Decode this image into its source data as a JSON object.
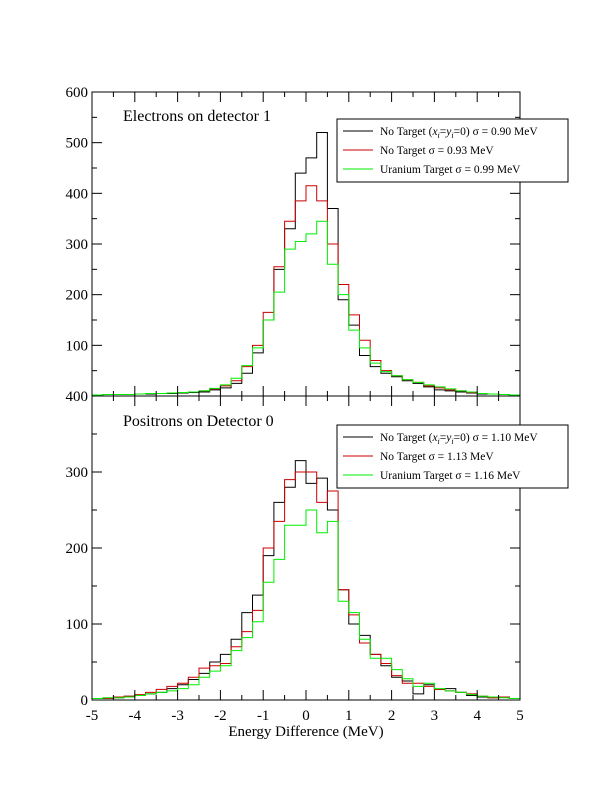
{
  "chart_data": [
    {
      "type": "line",
      "title": "Electrons on detector 1",
      "xlabel": "Energy Difference (MeV)",
      "ylabel": "",
      "xlim": [
        -5,
        5
      ],
      "ylim": [
        0,
        600
      ],
      "x_ticks": [
        "-5",
        "-4",
        "-3",
        "-2",
        "-1",
        "0",
        "1",
        "2",
        "3",
        "4",
        "5"
      ],
      "y_ticks": [
        "600",
        "500",
        "400",
        "300",
        "200",
        "100"
      ],
      "bin_edges": [
        -5.0,
        -4.75,
        -4.5,
        -4.25,
        -4.0,
        -3.75,
        -3.5,
        -3.25,
        -3.0,
        -2.75,
        -2.5,
        -2.25,
        -2.0,
        -1.75,
        -1.5,
        -1.25,
        -1.0,
        -0.75,
        -0.5,
        -0.25,
        0.0,
        0.25,
        0.5,
        0.75,
        1.0,
        1.25,
        1.5,
        1.75,
        2.0,
        2.25,
        2.5,
        2.75,
        3.0,
        3.25,
        3.5,
        3.75,
        4.0,
        4.25,
        4.5,
        4.75,
        5.0
      ],
      "legend_position": "top-right",
      "series": [
        {
          "name": "No Target (x_i=y_i=0) σ = 0.90 MeV",
          "color": "#000000",
          "values": [
            2,
            3,
            3,
            3,
            4,
            4,
            5,
            5,
            6,
            7,
            8,
            12,
            16,
            25,
            45,
            85,
            150,
            250,
            330,
            440,
            470,
            520,
            370,
            190,
            140,
            80,
            58,
            45,
            38,
            30,
            25,
            18,
            12,
            10,
            8,
            6,
            4,
            4,
            3,
            2
          ]
        },
        {
          "name": "No Target σ = 0.93 MeV",
          "color": "#cc0000",
          "values": [
            2,
            3,
            3,
            3,
            4,
            5,
            5,
            6,
            7,
            8,
            10,
            14,
            20,
            30,
            58,
            100,
            165,
            255,
            345,
            385,
            415,
            385,
            300,
            220,
            160,
            110,
            70,
            50,
            40,
            32,
            27,
            20,
            16,
            12,
            10,
            7,
            5,
            4,
            3,
            2
          ]
        },
        {
          "name": "Uranium Target σ = 0.99 MeV",
          "color": "#00ee00",
          "values": [
            2,
            3,
            3,
            3,
            4,
            5,
            5,
            6,
            7,
            8,
            10,
            15,
            22,
            35,
            60,
            95,
            150,
            205,
            290,
            305,
            320,
            345,
            260,
            200,
            130,
            95,
            65,
            48,
            40,
            32,
            27,
            22,
            18,
            14,
            10,
            8,
            5,
            4,
            3,
            2
          ]
        }
      ]
    },
    {
      "type": "line",
      "title": "Positrons on Detector 0",
      "xlabel": "Energy Difference (MeV)",
      "ylabel": "",
      "xlim": [
        -5,
        5
      ],
      "ylim": [
        0,
        400
      ],
      "x_ticks": [
        "-5",
        "-4",
        "-3",
        "-2",
        "-1",
        "0",
        "1",
        "2",
        "3",
        "4",
        "5"
      ],
      "y_ticks": [
        "400",
        "300",
        "200",
        "100",
        "0"
      ],
      "bin_edges": [
        -5.0,
        -4.75,
        -4.5,
        -4.25,
        -4.0,
        -3.75,
        -3.5,
        -3.25,
        -3.0,
        -2.75,
        -2.5,
        -2.25,
        -2.0,
        -1.75,
        -1.5,
        -1.25,
        -1.0,
        -0.75,
        -0.5,
        -0.25,
        0.0,
        0.25,
        0.5,
        0.75,
        1.0,
        1.25,
        1.5,
        1.75,
        2.0,
        2.25,
        2.5,
        2.75,
        3.0,
        3.25,
        3.5,
        3.75,
        4.0,
        4.25,
        4.5,
        4.75,
        5.0
      ],
      "legend_position": "top-right",
      "series": [
        {
          "name": "No Target (x_i=y_i=0) σ = 1.10 MeV",
          "color": "#000000",
          "values": [
            2,
            2,
            3,
            5,
            6,
            8,
            10,
            15,
            20,
            27,
            35,
            50,
            60,
            80,
            115,
            138,
            190,
            260,
            280,
            315,
            285,
            292,
            250,
            145,
            100,
            85,
            60,
            45,
            30,
            25,
            8,
            20,
            14,
            15,
            10,
            6,
            4,
            3,
            4,
            2
          ]
        },
        {
          "name": "No Target σ = 1.13 MeV",
          "color": "#cc0000",
          "values": [
            2,
            2,
            4,
            5,
            7,
            10,
            14,
            18,
            22,
            30,
            42,
            45,
            48,
            70,
            90,
            118,
            200,
            235,
            290,
            300,
            300,
            260,
            275,
            145,
            112,
            75,
            60,
            48,
            32,
            22,
            22,
            18,
            14,
            12,
            10,
            8,
            5,
            3,
            4,
            2
          ]
        },
        {
          "name": "Uranium Target σ = 1.16 MeV",
          "color": "#00ee00",
          "values": [
            2,
            3,
            3,
            4,
            6,
            8,
            10,
            12,
            15,
            20,
            30,
            38,
            45,
            65,
            82,
            103,
            155,
            185,
            230,
            230,
            250,
            220,
            235,
            130,
            115,
            80,
            55,
            55,
            40,
            28,
            18,
            22,
            15,
            12,
            10,
            7,
            5,
            4,
            3,
            2
          ]
        }
      ]
    }
  ],
  "panels": [
    {
      "title": "Electrons on detector 1",
      "legend": [
        {
          "text": "No Target (",
          "x": "x",
          "xs": "i",
          "eq": "=",
          "y": "y",
          "ys": "i",
          "rest": "=0) σ = 0.90 MeV"
        },
        {
          "text": "No Target σ = 0.93 MeV"
        },
        {
          "text": "Uranium Target σ = 0.99 MeV"
        }
      ]
    },
    {
      "title": "Positrons on Detector 0",
      "legend": [
        {
          "text": "No Target (",
          "x": "x",
          "xs": "i",
          "eq": "=",
          "y": "y",
          "ys": "i",
          "rest": "=0) σ = 1.10 MeV"
        },
        {
          "text": "No Target σ = 1.13 MeV"
        },
        {
          "text": "Uranium Target σ = 1.16 MeV"
        }
      ]
    }
  ],
  "x_axis_title": "Energy Difference (MeV)"
}
